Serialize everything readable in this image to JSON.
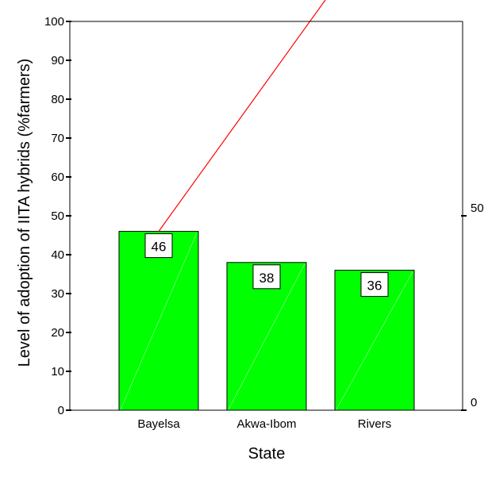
{
  "chart_data": {
    "type": "bar",
    "categories": [
      "Bayelsa",
      "Akwa-Ibom",
      "Rivers"
    ],
    "values": [
      46,
      38,
      36
    ],
    "data_labels": [
      "46",
      "38",
      "36"
    ],
    "xlabel": "State",
    "ylabel": "Level of adoption of IITA hybrids (%farmers)",
    "ylim": [
      0,
      100
    ],
    "yticks": [
      "0",
      "10",
      "20",
      "30",
      "40",
      "50",
      "60",
      "70",
      "80",
      "90",
      "100"
    ],
    "y2ticks": [
      "0",
      "50"
    ],
    "y2lim": [
      0,
      100
    ],
    "bar_color": "#00ff00",
    "line_color": "#ff0000",
    "grid": false
  }
}
